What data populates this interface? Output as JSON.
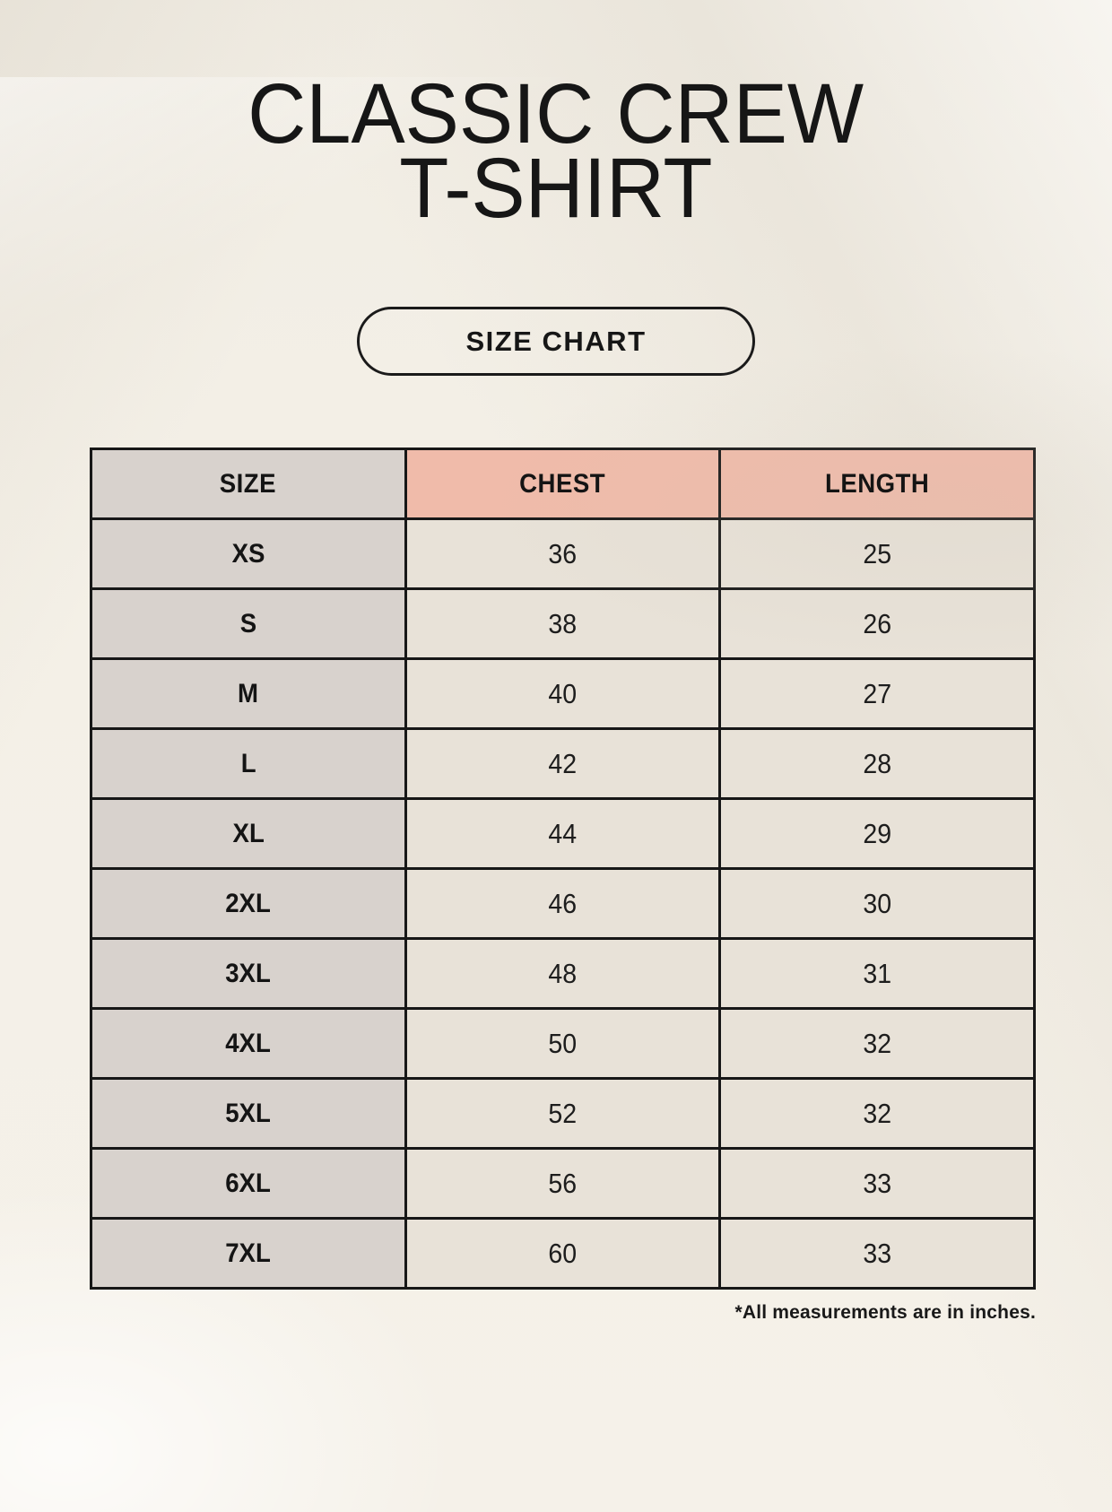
{
  "page": {
    "title_line1": "CLASSIC CREW",
    "title_line2": "T-SHIRT",
    "size_chart_button_label": "SIZE CHART",
    "footnote": "*All measurements are in inches."
  },
  "colors": {
    "background": "#f4f0e7",
    "header_accent": "#f0bbaa",
    "size_column": "#d8d2cd",
    "data_cell": "#e8e2d8",
    "border": "#171717",
    "text": "#161616"
  },
  "chart_data": {
    "type": "table",
    "title": "CLASSIC CREW T-SHIRT SIZE CHART",
    "columns": [
      "SIZE",
      "CHEST",
      "LENGTH"
    ],
    "rows": [
      [
        "XS",
        "36",
        "25"
      ],
      [
        "S",
        "38",
        "26"
      ],
      [
        "M",
        "40",
        "27"
      ],
      [
        "L",
        "42",
        "28"
      ],
      [
        "XL",
        "44",
        "29"
      ],
      [
        "2XL",
        "46",
        "30"
      ],
      [
        "3XL",
        "48",
        "31"
      ],
      [
        "4XL",
        "50",
        "32"
      ],
      [
        "5XL",
        "52",
        "32"
      ],
      [
        "6XL",
        "56",
        "33"
      ],
      [
        "7XL",
        "60",
        "33"
      ]
    ],
    "units_note": "*All measurements are in inches."
  }
}
